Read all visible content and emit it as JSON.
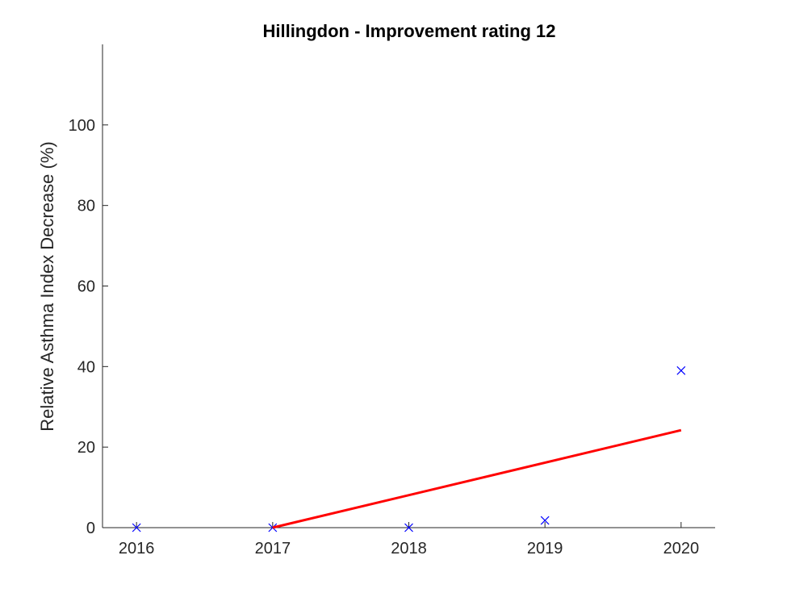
{
  "chart_data": {
    "type": "scatter",
    "title": "Hillingdon - Improvement rating 12",
    "xlabel": "",
    "ylabel": "Relative Asthma Index Decrease (%)",
    "xlim": [
      2015.75,
      2020.25
    ],
    "ylim": [
      0,
      120
    ],
    "xticks": [
      2016,
      2017,
      2018,
      2019,
      2020
    ],
    "yticks": [
      0,
      20,
      40,
      60,
      80,
      100
    ],
    "grid": false,
    "series": [
      {
        "marker": "x",
        "color": "#0000ff",
        "x": [
          2016,
          2017,
          2018,
          2019,
          2020
        ],
        "y": [
          0,
          0,
          0,
          1.8,
          39
        ]
      },
      {
        "type": "line",
        "color": "#ff0000",
        "x": [
          2017,
          2020
        ],
        "y": [
          0,
          24.2
        ]
      }
    ]
  }
}
